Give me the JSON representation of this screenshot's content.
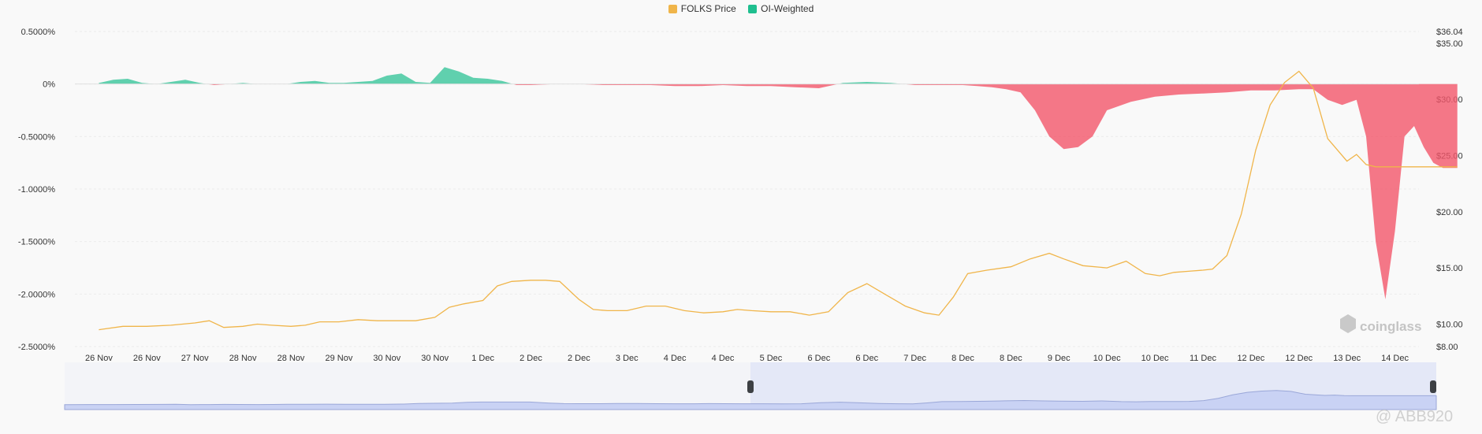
{
  "legend": [
    {
      "label": "FOLKS Price",
      "color": "#f0b54a"
    },
    {
      "label": "OI-Weighted",
      "color": "#1fbf8f"
    }
  ],
  "chart_data": {
    "type": "area",
    "left_axis": {
      "ticks": [
        "0.5000%",
        "0%",
        "-0.5000%",
        "-1.0000%",
        "-1.5000%",
        "-2.0000%",
        "-2.5000%"
      ],
      "range": [
        -2.5,
        0.5
      ]
    },
    "right_axis": {
      "ticks": [
        "$36.04",
        "$35.00",
        "$30.00",
        "$25.00",
        "$20.00",
        "$15.00",
        "$10.00",
        "$8.00"
      ],
      "range": [
        8,
        36.04
      ]
    },
    "x_labels": [
      "26 Nov",
      "26 Nov",
      "27 Nov",
      "28 Nov",
      "28 Nov",
      "29 Nov",
      "30 Nov",
      "30 Nov",
      "1 Dec",
      "2 Dec",
      "2 Dec",
      "3 Dec",
      "4 Dec",
      "4 Dec",
      "5 Dec",
      "6 Dec",
      "6 Dec",
      "7 Dec",
      "8 Dec",
      "8 Dec",
      "9 Dec",
      "10 Dec",
      "10 Dec",
      "11 Dec",
      "12 Dec",
      "12 Dec",
      "13 Dec",
      "14 Dec"
    ],
    "series": [
      {
        "name": "OI-Weighted",
        "axis": "left",
        "positive_color": "#1fbf8f",
        "negative_color": "#f2566a",
        "x": [
          0,
          0.3,
          0.6,
          0.9,
          1.2,
          1.5,
          1.8,
          2.1,
          2.4,
          2.7,
          3.0,
          3.3,
          3.6,
          3.9,
          4.2,
          4.5,
          4.8,
          5.1,
          5.4,
          5.7,
          6.0,
          6.3,
          6.6,
          6.9,
          7.2,
          7.5,
          7.8,
          8.1,
          8.4,
          8.7,
          9.0,
          9.5,
          10,
          10.5,
          11,
          11.5,
          12,
          12.5,
          13,
          13.5,
          14,
          14.5,
          15,
          15.5,
          16,
          16.5,
          17,
          17.5,
          18,
          18.3,
          18.6,
          18.9,
          19.2,
          19.5,
          19.8,
          20.1,
          20.4,
          20.7,
          21.0,
          21.5,
          22,
          22.5,
          23,
          23.5,
          24,
          24.5,
          25,
          25.3,
          25.6,
          25.9,
          26.2,
          26.4,
          26.6,
          26.8,
          27.0,
          27.2,
          27.4,
          27.6,
          27.8,
          28.0,
          28.3
        ],
        "values": [
          0.01,
          0.04,
          0.05,
          0.01,
          0,
          0.02,
          0.04,
          0.01,
          -0.01,
          0,
          0.01,
          0,
          0,
          0,
          0.02,
          0.03,
          0.01,
          0.01,
          0.02,
          0.03,
          0.08,
          0.1,
          0.02,
          0.01,
          0.16,
          0.12,
          0.06,
          0.05,
          0.03,
          -0.01,
          -0.01,
          0,
          0,
          -0.01,
          -0.01,
          -0.01,
          -0.02,
          -0.02,
          -0.01,
          -0.02,
          -0.02,
          -0.03,
          -0.04,
          0.01,
          0.02,
          0.01,
          -0.01,
          -0.01,
          -0.01,
          -0.02,
          -0.03,
          -0.05,
          -0.08,
          -0.25,
          -0.5,
          -0.62,
          -0.6,
          -0.5,
          -0.25,
          -0.17,
          -0.12,
          -0.1,
          -0.09,
          -0.08,
          -0.06,
          -0.06,
          -0.05,
          -0.05,
          -0.15,
          -0.2,
          -0.15,
          -0.5,
          -1.5,
          -2.05,
          -1.4,
          -0.5,
          -0.4,
          -0.6,
          -0.75,
          -0.8,
          -0.8
        ]
      },
      {
        "name": "FOLKS Price",
        "axis": "right",
        "color": "#f0b54a",
        "x": [
          0,
          0.5,
          1,
          1.5,
          2,
          2.3,
          2.6,
          3,
          3.3,
          3.6,
          4,
          4.3,
          4.6,
          5,
          5.4,
          5.8,
          6.2,
          6.6,
          7,
          7.3,
          7.6,
          8,
          8.3,
          8.6,
          9,
          9.3,
          9.6,
          10,
          10.3,
          10.6,
          11,
          11.4,
          11.8,
          12.2,
          12.6,
          13,
          13.3,
          13.6,
          14,
          14.4,
          14.8,
          15.2,
          15.6,
          16,
          16.4,
          16.8,
          17.2,
          17.5,
          17.8,
          18.1,
          18.5,
          19,
          19.4,
          19.8,
          20.1,
          20.5,
          21,
          21.4,
          21.8,
          22.1,
          22.4,
          22.7,
          23,
          23.2,
          23.5,
          23.8,
          24.1,
          24.4,
          24.7,
          25,
          25.3,
          25.6,
          26.0,
          26.2,
          26.4,
          26.6,
          26.8,
          27.0,
          27.2,
          27.4,
          27.6,
          27.8,
          28.0,
          28.3
        ],
        "values": [
          9.5,
          9.8,
          9.8,
          9.9,
          10.1,
          10.3,
          9.7,
          9.8,
          10,
          9.9,
          9.8,
          9.9,
          10.2,
          10.2,
          10.4,
          10.3,
          10.3,
          10.3,
          10.6,
          11.5,
          11.8,
          12.1,
          13.4,
          13.8,
          13.9,
          13.9,
          13.8,
          12.2,
          11.3,
          11.2,
          11.2,
          11.6,
          11.6,
          11.2,
          11,
          11.1,
          11.3,
          11.2,
          11.1,
          11.1,
          10.8,
          11.1,
          12.8,
          13.6,
          12.6,
          11.6,
          11,
          10.8,
          12.4,
          14.5,
          14.8,
          15.1,
          15.8,
          16.3,
          15.8,
          15.2,
          15,
          15.6,
          14.5,
          14.3,
          14.6,
          14.7,
          14.8,
          14.9,
          16.1,
          19.8,
          25.5,
          29.5,
          31.5,
          32.5,
          31,
          26.5,
          24.5,
          25.1,
          24.2,
          24.0,
          24.0,
          24.0,
          24.0,
          24.0,
          24.0,
          24.0,
          24.0,
          24.0
        ]
      }
    ],
    "navigator": {
      "selected_from": 0.5,
      "selected_to": 1.0
    }
  },
  "watermarks": {
    "brand": "coinglass",
    "handle": "@ ABB920"
  }
}
